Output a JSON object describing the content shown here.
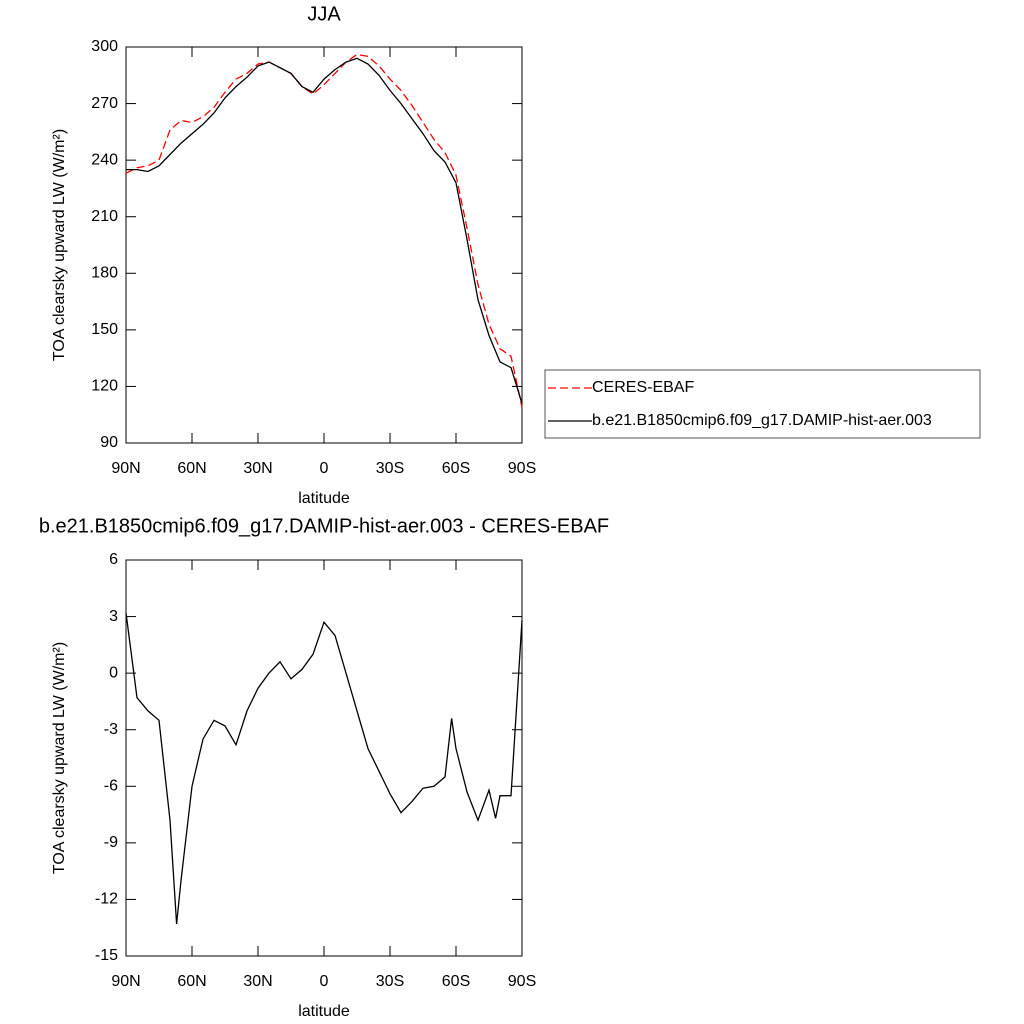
{
  "chart_data": [
    {
      "type": "line",
      "title": "JJA",
      "x_label": "latitude",
      "y_label": "TOA clearsky upward LW (W/m²)",
      "x": [
        90,
        85,
        80,
        75,
        70,
        65,
        60,
        55,
        50,
        45,
        40,
        35,
        30,
        25,
        20,
        15,
        10,
        5,
        0,
        -5,
        -10,
        -15,
        -20,
        -25,
        -30,
        -35,
        -40,
        -45,
        -50,
        -55,
        -60,
        -65,
        -70,
        -75,
        -80,
        -85,
        -90
      ],
      "series": [
        {
          "name": "CERES-EBAF",
          "color": "#ff0000",
          "line_style": "dashed",
          "values": [
            233,
            236,
            237,
            240,
            256,
            261,
            260,
            263,
            268,
            276,
            283,
            286,
            291,
            292,
            289,
            286,
            279,
            275,
            280,
            286,
            292,
            296,
            295,
            290,
            283,
            277,
            269,
            260,
            251,
            244,
            232,
            204,
            174,
            153,
            140,
            136,
            109
          ]
        },
        {
          "name": "b.e21.B1850cmip6.f09_g17.DAMIP-hist-aer.003",
          "color": "#000000",
          "line_style": "solid",
          "values": [
            235,
            235,
            234,
            237,
            243,
            249,
            254,
            259,
            265,
            273,
            279,
            284,
            290,
            292,
            289,
            286,
            279,
            276,
            283,
            288,
            292,
            294,
            291,
            285,
            277,
            270,
            262,
            254,
            245,
            239,
            228,
            198,
            166,
            147,
            133,
            130,
            111
          ]
        }
      ],
      "xlim": [
        90,
        -90
      ],
      "xticks": [
        {
          "value": 90,
          "label": "90N"
        },
        {
          "value": 60,
          "label": "60N"
        },
        {
          "value": 30,
          "label": "30N"
        },
        0,
        {
          "value": -30,
          "label": "30S"
        },
        {
          "value": -60,
          "label": "60S"
        },
        {
          "value": -90,
          "label": "90S"
        }
      ],
      "ylim": [
        90,
        300
      ],
      "yticks": [
        90,
        120,
        150,
        180,
        210,
        240,
        270,
        300
      ],
      "legend": "right"
    },
    {
      "type": "line",
      "title": "b.e21.B1850cmip6.f09_g17.DAMIP-hist-aer.003 - CERES-EBAF",
      "x_label": "latitude",
      "y_label": "TOA clearsky upward LW (W/m²)",
      "x": [
        90,
        85,
        80,
        75,
        70,
        67,
        65,
        60,
        55,
        50,
        45,
        40,
        35,
        30,
        25,
        20,
        15,
        10,
        5,
        0,
        -5,
        -10,
        -15,
        -20,
        -25,
        -30,
        -35,
        -40,
        -45,
        -50,
        -55,
        -58,
        -60,
        -65,
        -70,
        -75,
        -78,
        -80,
        -85,
        -90
      ],
      "series": [
        {
          "color": "#000000",
          "line_style": "solid",
          "values": [
            3.2,
            -1.3,
            -2.0,
            -2.5,
            -7.8,
            -13.3,
            -11,
            -6,
            -3.5,
            -2.5,
            -2.8,
            -3.8,
            -2,
            -0.8,
            0,
            0.6,
            -0.3,
            0.2,
            1,
            2.7,
            2,
            0,
            -2,
            -4,
            -5.2,
            -6.4,
            -7.4,
            -6.8,
            -6.1,
            -6,
            -5.5,
            -2.4,
            -4,
            -6.3,
            -7.8,
            -6.2,
            -7.7,
            -6.5,
            -6.5,
            2.8
          ]
        }
      ],
      "xlim": [
        90,
        -90
      ],
      "xticks": [
        {
          "value": 90,
          "label": "90N"
        },
        {
          "value": 60,
          "label": "60N"
        },
        {
          "value": 30,
          "label": "30N"
        },
        0,
        {
          "value": -30,
          "label": "30S"
        },
        {
          "value": -60,
          "label": "60S"
        },
        {
          "value": -90,
          "label": "90S"
        }
      ],
      "ylim": [
        -15,
        6
      ],
      "yticks": [
        -15,
        -12,
        -9,
        -6,
        -3,
        0,
        3,
        6
      ]
    }
  ]
}
